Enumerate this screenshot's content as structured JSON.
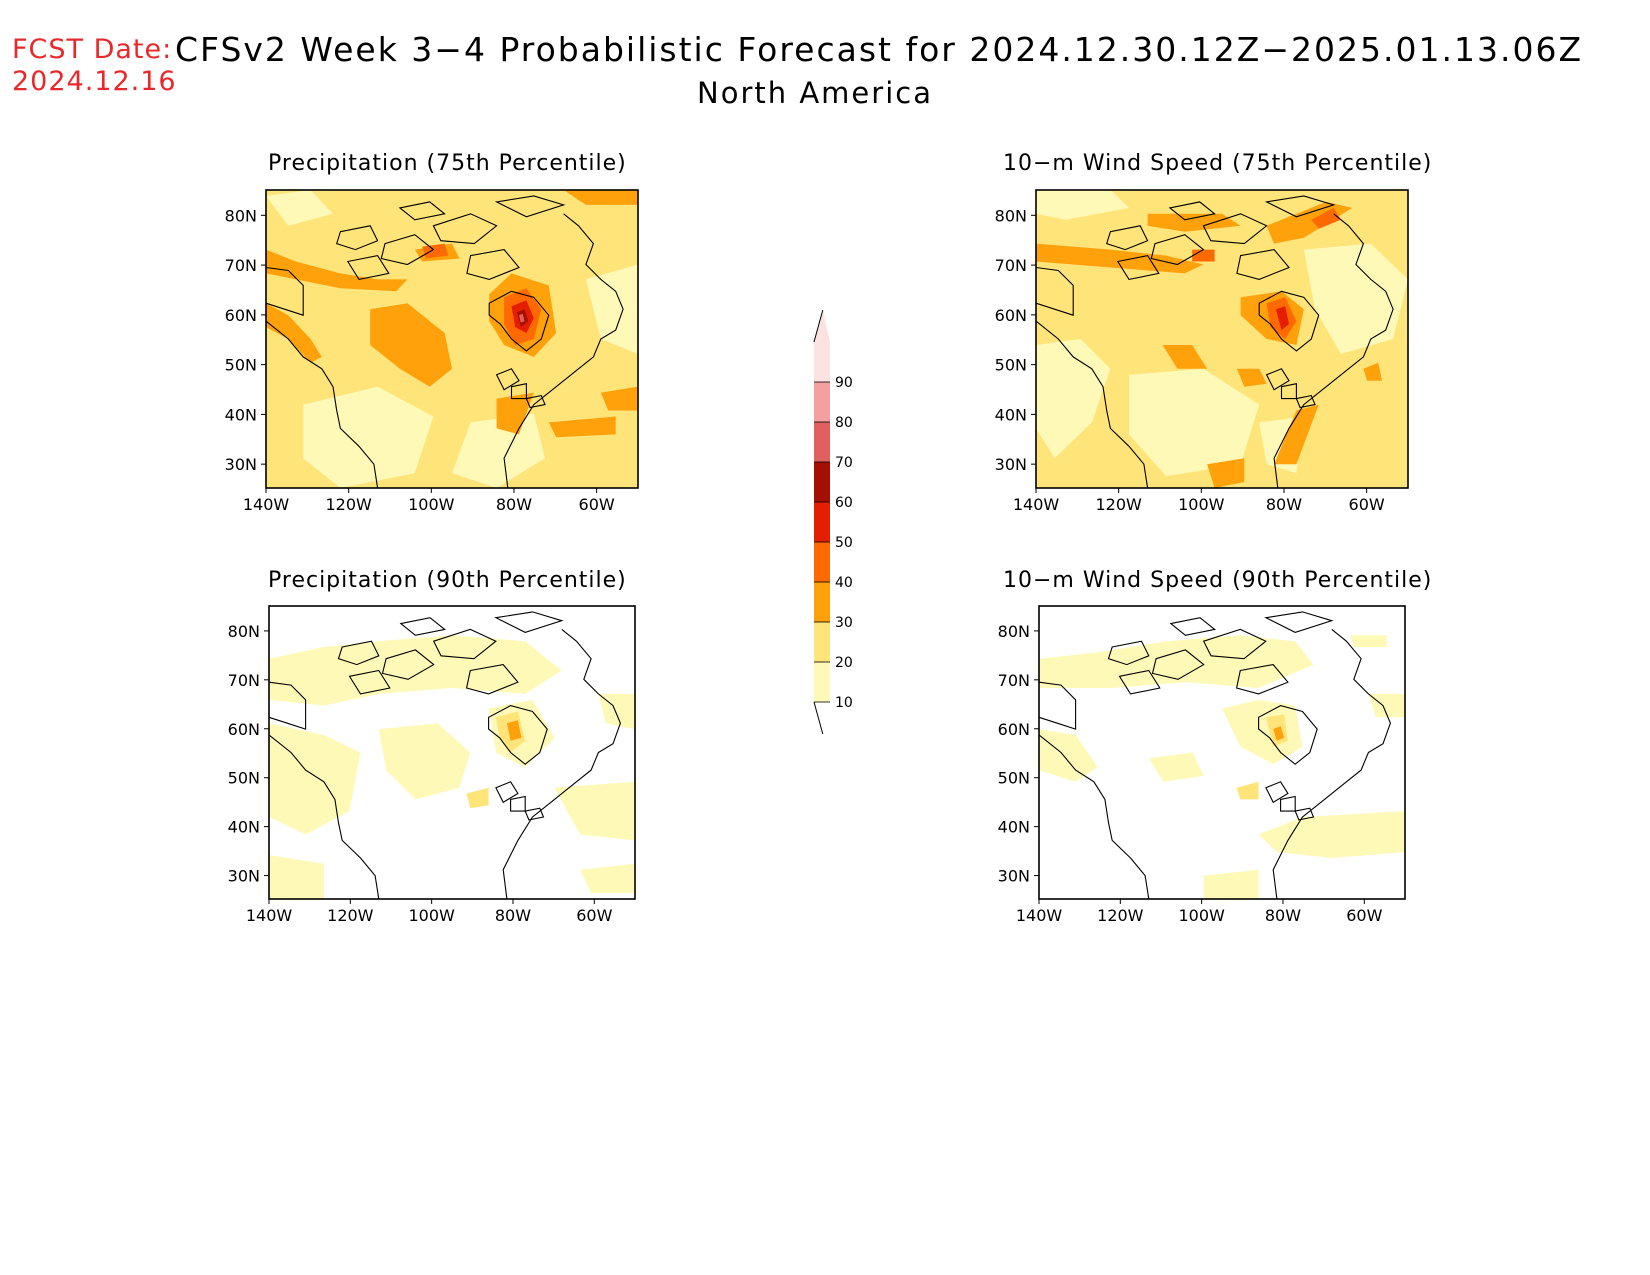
{
  "header": {
    "fcst_label": "FCST Date:",
    "fcst_date": "2024.12.16",
    "title": "CFSv2 Week 3−4 Probabilistic Forecast for 2024.12.30.12Z−2025.01.13.06Z",
    "region": "North America"
  },
  "colors": {
    "c10": "#fff9b8",
    "c20": "#ffe47a",
    "c30": "#ffa10a",
    "c40": "#ff6a00",
    "c50": "#e61e00",
    "c60": "#a50f00",
    "c70": "#e06060",
    "c80": "#f5a0a0",
    "c90": "#fde2e2"
  },
  "axes": {
    "lon_labels": [
      "140W",
      "120W",
      "100W",
      "80W",
      "60W"
    ],
    "lat_labels": [
      "80N",
      "70N",
      "60N",
      "50N",
      "40N",
      "30N"
    ]
  },
  "panels": [
    {
      "id": "precip75",
      "title": "Precipitation (75th Percentile)"
    },
    {
      "id": "wind75",
      "title": "10−m Wind Speed (75th Percentile)"
    },
    {
      "id": "precip90",
      "title": "Precipitation (90th Percentile)"
    },
    {
      "id": "wind90",
      "title": "10−m Wind Speed (90th Percentile)"
    }
  ],
  "colorbar": {
    "labels": [
      "10",
      "20",
      "30",
      "40",
      "50",
      "60",
      "70",
      "80",
      "90"
    ]
  }
}
